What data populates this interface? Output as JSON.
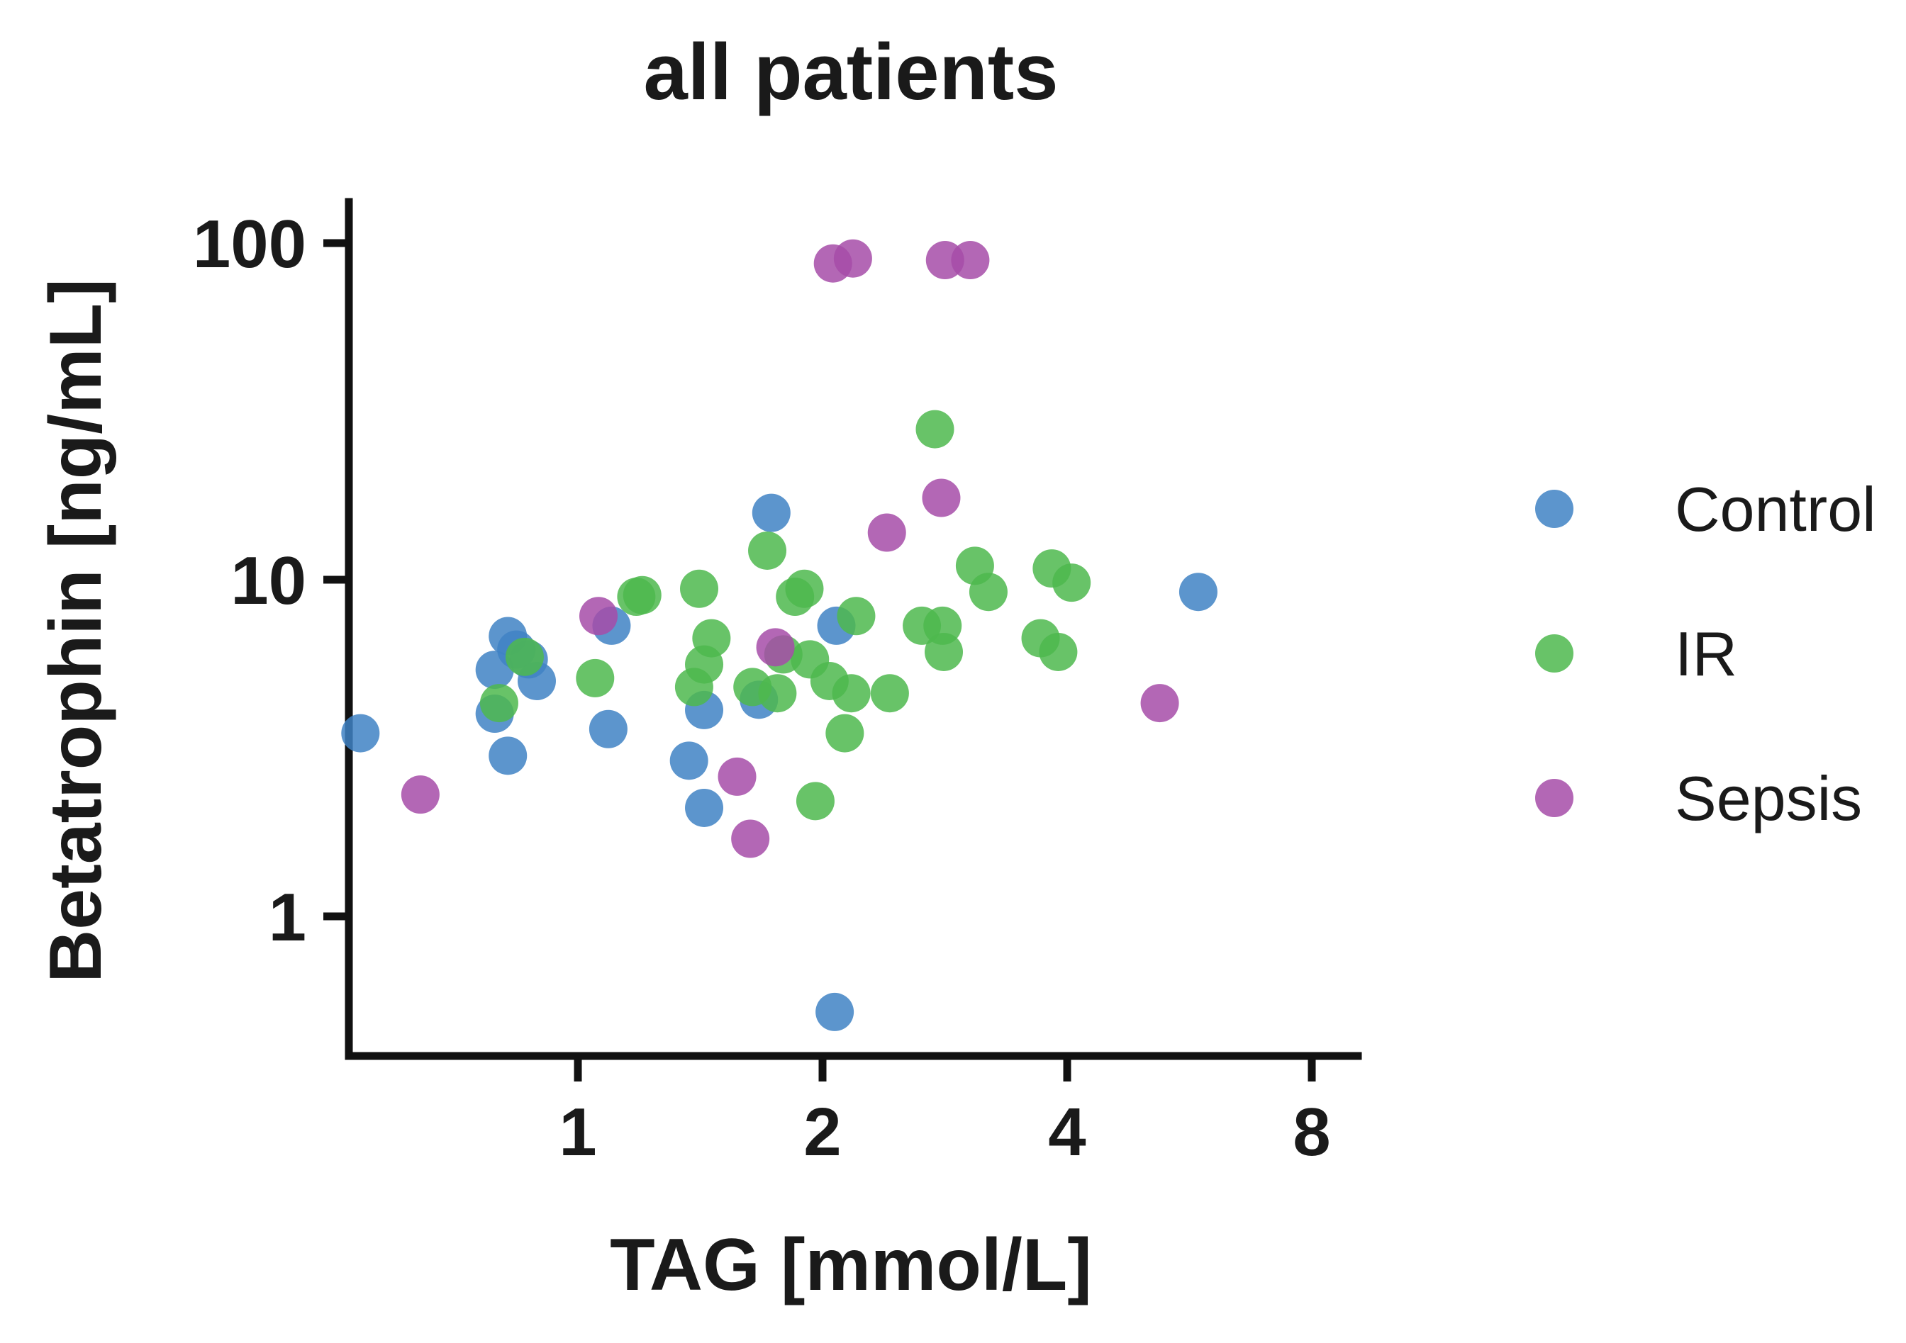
{
  "chart_data": {
    "type": "scatter",
    "title": "all patients",
    "xlabel": "TAG [mmol/L]",
    "ylabel": "Betatrophin [ng/mL]",
    "xscale": "log2",
    "yscale": "log10",
    "xlim": [
      0.5,
      9.5
    ],
    "ylim": [
      0.4,
      150
    ],
    "xticks": [
      1,
      2,
      4,
      8
    ],
    "xtick_labels": [
      "1",
      "2",
      "4",
      "8"
    ],
    "yticks": [
      1,
      10,
      100
    ],
    "ytick_labels": [
      "1",
      "10",
      "100"
    ],
    "grid": false,
    "legend_position": "right",
    "series": [
      {
        "name": "Control",
        "color": "#3f82c4",
        "points": [
          [
            0.54,
            3.5
          ],
          [
            0.79,
            5.4
          ],
          [
            0.82,
            6.8
          ],
          [
            0.84,
            6.2
          ],
          [
            0.87,
            5.8
          ],
          [
            0.89,
            5.0
          ],
          [
            0.79,
            4.0
          ],
          [
            0.82,
            3.0
          ],
          [
            1.1,
            7.3
          ],
          [
            1.09,
            3.6
          ],
          [
            1.37,
            2.9
          ],
          [
            1.43,
            4.1
          ],
          [
            1.43,
            2.1
          ],
          [
            1.73,
            15.8
          ],
          [
            1.67,
            4.4
          ],
          [
            2.08,
            7.3
          ],
          [
            2.07,
            0.52
          ],
          [
            5.8,
            9.2
          ]
        ]
      },
      {
        "name": "IR",
        "color": "#4db84d",
        "points": [
          [
            0.86,
            5.9
          ],
          [
            0.8,
            4.3
          ],
          [
            1.05,
            5.1
          ],
          [
            1.18,
            8.9
          ],
          [
            1.2,
            9.0
          ],
          [
            1.41,
            9.4
          ],
          [
            1.46,
            6.7
          ],
          [
            1.43,
            5.6
          ],
          [
            1.39,
            4.8
          ],
          [
            1.64,
            4.8
          ],
          [
            1.71,
            12.2
          ],
          [
            1.79,
            6.0
          ],
          [
            1.76,
            4.6
          ],
          [
            1.85,
            8.9
          ],
          [
            1.9,
            9.4
          ],
          [
            1.93,
            5.8
          ],
          [
            2.04,
            5.0
          ],
          [
            1.96,
            2.2
          ],
          [
            2.2,
            7.8
          ],
          [
            2.17,
            4.6
          ],
          [
            2.13,
            3.5
          ],
          [
            2.42,
            4.6
          ],
          [
            2.65,
            7.3
          ],
          [
            2.75,
            28.0
          ],
          [
            2.81,
            7.3
          ],
          [
            2.82,
            6.1
          ],
          [
            3.08,
            11.0
          ],
          [
            3.2,
            9.2
          ],
          [
            3.71,
            6.7
          ],
          [
            3.83,
            10.8
          ],
          [
            3.9,
            6.1
          ],
          [
            4.05,
            9.8
          ]
        ]
      },
      {
        "name": "Sepsis",
        "color": "#a64ca8",
        "points": [
          [
            0.64,
            2.3
          ],
          [
            1.06,
            7.8
          ],
          [
            1.57,
            2.6
          ],
          [
            1.63,
            1.7
          ],
          [
            1.75,
            6.3
          ],
          [
            2.06,
            87.0
          ],
          [
            2.18,
            90.0
          ],
          [
            2.4,
            13.8
          ],
          [
            2.8,
            17.5
          ],
          [
            2.83,
            89.0
          ],
          [
            3.04,
            89.0
          ],
          [
            5.2,
            4.3
          ]
        ]
      }
    ]
  }
}
